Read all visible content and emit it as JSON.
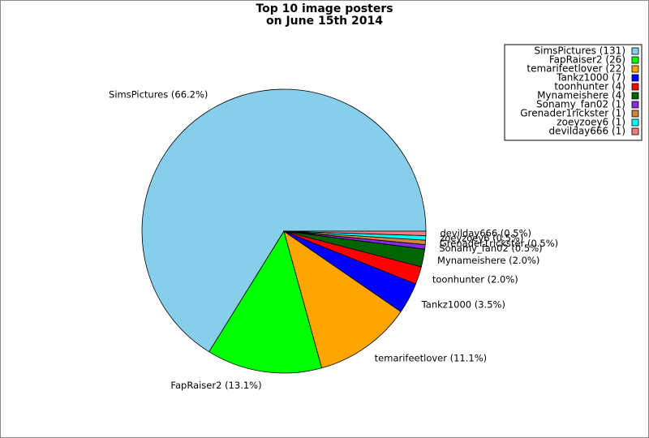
{
  "chart_data": {
    "type": "pie",
    "title": [
      "Top 10 image posters",
      "on June 15th 2014"
    ],
    "categories": [
      "SimsPictures",
      "FapRaiser2",
      "temarifeetlover",
      "Tankz1000",
      "toonhunter",
      "Mynameishere",
      "Sonamy_fan02",
      "Grenader1rickster",
      "zoeyzoey6",
      "devilday666"
    ],
    "values": [
      131,
      26,
      22,
      7,
      4,
      4,
      1,
      1,
      1,
      1
    ],
    "slice_labels": [
      "SimsPictures (66.2%)",
      "FapRaiser2 (13.1%)",
      "temarifeetlover (11.1%)",
      "Tankz1000 (3.5%)",
      "toonhunter (2.0%)",
      "Mynameishere (2.0%)",
      "Sonamy_fan02 (0.5%)",
      "Grenader1rickster (0.5%)",
      "zoeyzoey6 (0.5%)",
      "devilday666 (0.5%)"
    ],
    "legend_labels": [
      "SimsPictures (131)",
      "FapRaiser2 (26)",
      "temarifeetlover (22)",
      "Tankz1000 (7)",
      "toonhunter (4)",
      "Mynameishere (4)",
      "Sonamy_fan02 (1)",
      "Grenader1rickster (1)",
      "zoeyzoey6 (1)",
      "devilday666 (1)"
    ],
    "colors": [
      "#87ceeb",
      "#00ff00",
      "#ffa500",
      "#0000ff",
      "#ff0000",
      "#006400",
      "#8a2be2",
      "#cd853f",
      "#00ffff",
      "#f08080"
    ],
    "start_angle": 0,
    "legend": "upper right"
  }
}
